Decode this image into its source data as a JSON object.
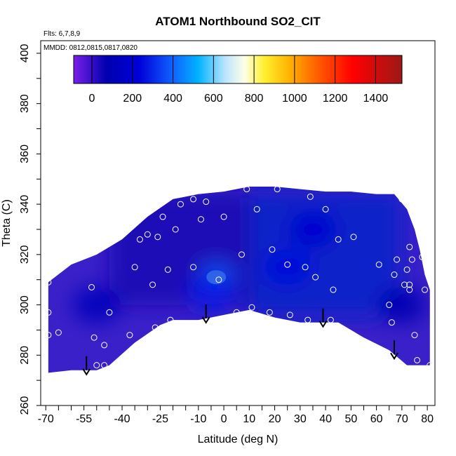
{
  "chart_data": {
    "type": "heatmap",
    "title": "ATOM1 Northbound SO2_CIT",
    "xlabel": "Latitude (deg N)",
    "ylabel": "Theta (C)",
    "xlim": [
      -72,
      83
    ],
    "ylim": [
      260,
      405
    ],
    "x_ticks": [
      -70,
      -55,
      -40,
      -25,
      -10,
      0,
      10,
      20,
      30,
      40,
      50,
      60,
      70,
      80
    ],
    "y_ticks": [
      260,
      280,
      300,
      320,
      340,
      360,
      380,
      400
    ],
    "annotations": [
      "Flts: 6,7,8,9",
      "MMDD: 0812,0815,0817,0820"
    ],
    "colorbar": {
      "ticks": [
        0,
        200,
        400,
        600,
        800,
        1000,
        1200,
        1400
      ],
      "range": [
        -90,
        1530
      ],
      "colors": [
        "#7a1fe8",
        "#0000b0",
        "#0000d8",
        "#1060ff",
        "#00b4ff",
        "#b8e4ff",
        "#ffffe8",
        "#fff030",
        "#ffb000",
        "#ff6000",
        "#ff0000",
        "#9c1818"
      ],
      "stops": [
        0,
        0.1,
        0.2,
        0.3,
        0.38,
        0.46,
        0.52,
        0.58,
        0.66,
        0.74,
        0.85,
        1.0
      ]
    },
    "field_colors": {
      "low": "#3a20c8",
      "mid": "#1a0eb6",
      "high": "#0e20c8",
      "peak": "#2e62e8"
    },
    "field_envelope_top": [
      [
        -69,
        309
      ],
      [
        -60,
        316
      ],
      [
        -50,
        320
      ],
      [
        -40,
        326
      ],
      [
        -30,
        335
      ],
      [
        -20,
        342
      ],
      [
        -10,
        344
      ],
      [
        0,
        345
      ],
      [
        10,
        347
      ],
      [
        20,
        347
      ],
      [
        30,
        346
      ],
      [
        40,
        345
      ],
      [
        50,
        345
      ],
      [
        60,
        344
      ],
      [
        67,
        344
      ],
      [
        72,
        338
      ],
      [
        75,
        330
      ],
      [
        77,
        322
      ],
      [
        79,
        312
      ],
      [
        81,
        306
      ]
    ],
    "field_envelope_bottom": [
      [
        -69,
        273
      ],
      [
        -60,
        274
      ],
      [
        -50,
        274
      ],
      [
        -45,
        276
      ],
      [
        -35,
        285
      ],
      [
        -25,
        292
      ],
      [
        -20,
        294
      ],
      [
        -10,
        294
      ],
      [
        0,
        296
      ],
      [
        10,
        298
      ],
      [
        20,
        295
      ],
      [
        30,
        293
      ],
      [
        40,
        293
      ],
      [
        45,
        293
      ],
      [
        55,
        287
      ],
      [
        65,
        282
      ],
      [
        72,
        276
      ],
      [
        81,
        276
      ]
    ],
    "field_blobs": [
      {
        "x": -3,
        "y": 311,
        "value": 380
      },
      {
        "x": -5,
        "y": 305,
        "value": 280
      },
      {
        "x": 25,
        "y": 315,
        "value": 250
      },
      {
        "x": -50,
        "y": 300,
        "value": 120
      },
      {
        "x": 70,
        "y": 300,
        "value": 80
      },
      {
        "x": 35,
        "y": 330,
        "value": 200
      }
    ],
    "sample_points": [
      [
        -69,
        309
      ],
      [
        -69,
        297
      ],
      [
        -69,
        288
      ],
      [
        -65,
        289
      ],
      [
        -52,
        307
      ],
      [
        -51,
        287
      ],
      [
        -50,
        276
      ],
      [
        -47,
        276
      ],
      [
        -47,
        284
      ],
      [
        -45,
        297
      ],
      [
        -37,
        288
      ],
      [
        -35,
        315
      ],
      [
        -33,
        326
      ],
      [
        -30,
        328
      ],
      [
        -28,
        308
      ],
      [
        -27,
        291
      ],
      [
        -26,
        327
      ],
      [
        -24,
        335
      ],
      [
        -22,
        314
      ],
      [
        -21,
        294
      ],
      [
        -19,
        330
      ],
      [
        -17,
        340
      ],
      [
        -12,
        315
      ],
      [
        -12,
        342
      ],
      [
        -9,
        334
      ],
      [
        -7,
        341
      ],
      [
        -2,
        310
      ],
      [
        0,
        335
      ],
      [
        5,
        297
      ],
      [
        7,
        320
      ],
      [
        9,
        346
      ],
      [
        11,
        299
      ],
      [
        13,
        338
      ],
      [
        18,
        297
      ],
      [
        19,
        322
      ],
      [
        21,
        346
      ],
      [
        25,
        316
      ],
      [
        26,
        296
      ],
      [
        32,
        315
      ],
      [
        33,
        294
      ],
      [
        34,
        343
      ],
      [
        36,
        311
      ],
      [
        40,
        338
      ],
      [
        42,
        294
      ],
      [
        43,
        306
      ],
      [
        45,
        326
      ],
      [
        51,
        327
      ],
      [
        61,
        316
      ],
      [
        65,
        300
      ],
      [
        66,
        293
      ],
      [
        67,
        312
      ],
      [
        68,
        318
      ],
      [
        70,
        342
      ],
      [
        71,
        308
      ],
      [
        72,
        314
      ],
      [
        73,
        306
      ],
      [
        73,
        308
      ],
      [
        73,
        323
      ],
      [
        74,
        318
      ],
      [
        75,
        288
      ],
      [
        76,
        278
      ],
      [
        78,
        319
      ],
      [
        79,
        306
      ],
      [
        81,
        276
      ]
    ],
    "arrows_at": [
      -54,
      -7,
      39,
      67
    ]
  }
}
